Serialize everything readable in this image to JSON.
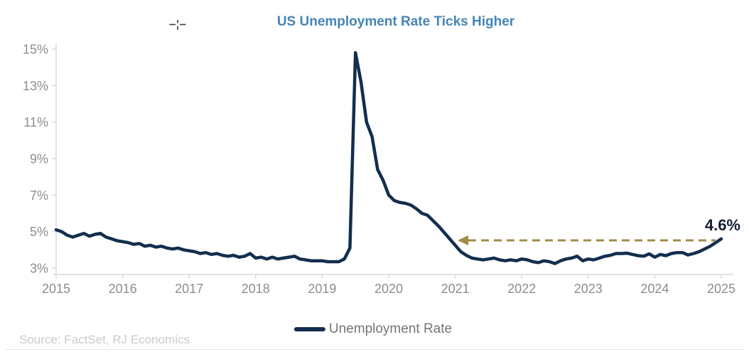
{
  "chart": {
    "title": "US Unemployment Rate Ticks Higher",
    "legend_label": "Unemployment Rate",
    "annotation_label": "4.6%",
    "source_note": "Source: FactSet, RJ Economics"
  },
  "chart_data": {
    "type": "line",
    "title": "US Unemployment Rate Ticks Higher",
    "xlabel": "",
    "ylabel": "",
    "x_tick_labels": [
      "2015",
      "2016",
      "2017",
      "2018",
      "2019",
      "2020",
      "2021",
      "2022",
      "2023",
      "2024",
      "2025"
    ],
    "points_per_x_interval": 12,
    "y_tick_labels": [
      "3%",
      "5%",
      "7%",
      "9%",
      "11%",
      "13%",
      "15%"
    ],
    "y_tick_values": [
      3,
      5,
      7,
      9,
      11,
      13,
      15
    ],
    "ylim": [
      3,
      15
    ],
    "grid": false,
    "legend_position": "bottom",
    "series": [
      {
        "name": "Unemployment Rate",
        "color": "#132e4e",
        "values": [
          5.1,
          5.0,
          4.8,
          4.7,
          4.8,
          4.9,
          4.75,
          4.85,
          4.9,
          4.7,
          4.6,
          4.5,
          4.45,
          4.4,
          4.3,
          4.35,
          4.2,
          4.25,
          4.15,
          4.2,
          4.1,
          4.05,
          4.1,
          4.0,
          3.95,
          3.9,
          3.8,
          3.85,
          3.75,
          3.8,
          3.7,
          3.65,
          3.7,
          3.6,
          3.65,
          3.8,
          3.55,
          3.6,
          3.5,
          3.6,
          3.5,
          3.55,
          3.6,
          3.65,
          3.5,
          3.45,
          3.4,
          3.4,
          3.4,
          3.35,
          3.35,
          3.35,
          3.5,
          4.1,
          14.8,
          13.2,
          11.0,
          10.2,
          8.4,
          7.8,
          7.0,
          6.7,
          6.6,
          6.55,
          6.45,
          6.25,
          6.0,
          5.9,
          5.6,
          5.3,
          4.95,
          4.6,
          4.25,
          3.9,
          3.7,
          3.55,
          3.5,
          3.45,
          3.5,
          3.55,
          3.45,
          3.4,
          3.45,
          3.4,
          3.5,
          3.45,
          3.35,
          3.3,
          3.4,
          3.35,
          3.25,
          3.4,
          3.5,
          3.55,
          3.65,
          3.4,
          3.5,
          3.45,
          3.55,
          3.65,
          3.7,
          3.8,
          3.8,
          3.82,
          3.75,
          3.68,
          3.65,
          3.78,
          3.6,
          3.75,
          3.68,
          3.8,
          3.85,
          3.85,
          3.72,
          3.8,
          3.9,
          4.05,
          4.2,
          4.4,
          4.6
        ]
      }
    ],
    "annotation": {
      "label": "4.6%",
      "value": 4.6,
      "arrow_style": "dashed",
      "arrow_direction": "left",
      "arrow_color": "#a38c48"
    },
    "source": "Source: FactSet, RJ Economics"
  },
  "colors": {
    "background": "#ffffff",
    "title_text": "#4585b5",
    "series_line": "#132e4e",
    "axis_line": "#d8d8d8",
    "tick_label_text": "#8d8d8d",
    "legend_text": "#757575",
    "source_text": "#cbcbcb",
    "annotation_text": "#131f33",
    "arrow": "#a38c48"
  }
}
